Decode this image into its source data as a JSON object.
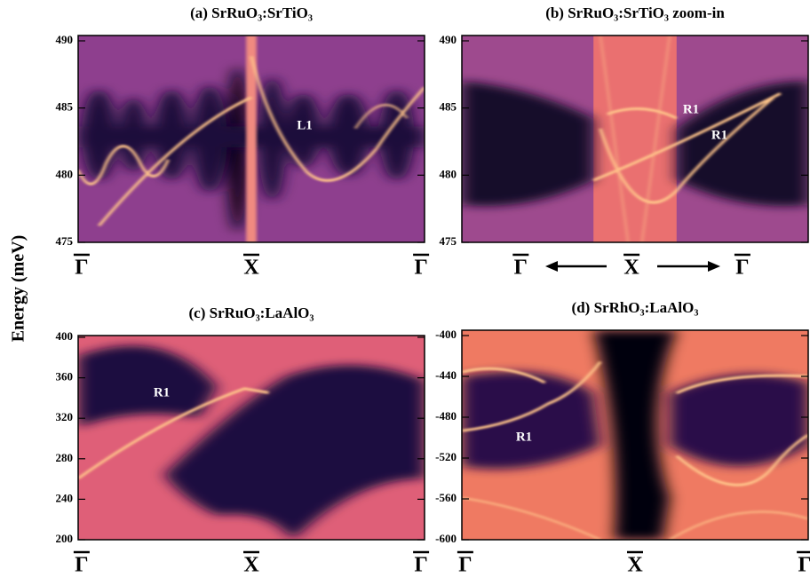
{
  "y_label": "Energy (meV)",
  "chart_data": [
    {
      "type": "heatmap",
      "title": "(a) SrRuO₃:SrTiO₃",
      "ylim": [
        475,
        490
      ],
      "yticks": [
        475,
        480,
        485,
        490
      ],
      "categories": [
        "Γ",
        "X",
        "Γ"
      ],
      "annotations": [
        "L1"
      ]
    },
    {
      "type": "heatmap",
      "title": "(b) SrRuO₃:SrTiO₃ zoom-in",
      "ylim": [
        475,
        490
      ],
      "yticks": [
        475,
        480,
        485,
        490
      ],
      "categories": [
        "Γ",
        "X",
        "Γ"
      ],
      "annotations": [
        "R1",
        "R1"
      ]
    },
    {
      "type": "heatmap",
      "title": "(c) SrRuO₃:LaAlO₃",
      "ylim": [
        200,
        400
      ],
      "yticks": [
        200,
        240,
        280,
        320,
        360,
        400
      ],
      "categories": [
        "Γ",
        "X",
        "Γ"
      ],
      "annotations": [
        "R1"
      ]
    },
    {
      "type": "heatmap",
      "title": "(d) SrRhO₃:LaAlO₃",
      "ylim": [
        -600,
        -400
      ],
      "yticks": [
        -600,
        -560,
        -520,
        -480,
        -440,
        -400
      ],
      "categories": [
        "Γ",
        "X",
        "Γ"
      ],
      "annotations": [
        "R1"
      ]
    }
  ]
}
